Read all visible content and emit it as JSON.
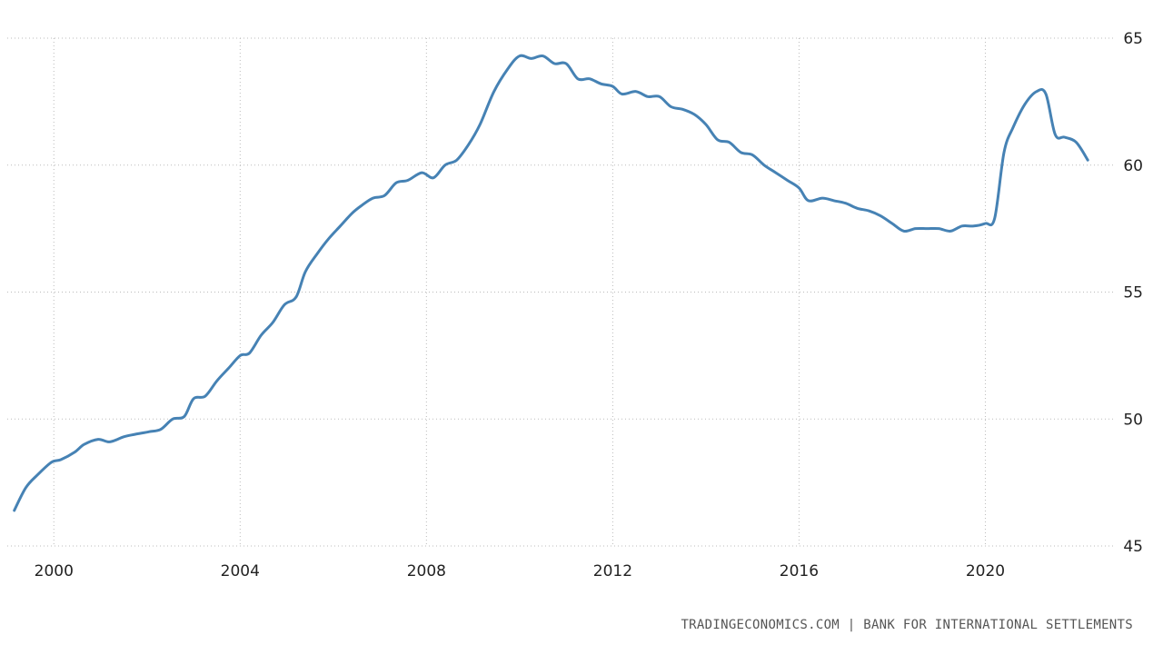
{
  "chart_data": {
    "type": "line",
    "xlim": [
      1999.0,
      2022.8
    ],
    "ylim": [
      45,
      65
    ],
    "x_ticks": [
      2000,
      2004,
      2008,
      2012,
      2016,
      2020
    ],
    "x_tick_labels": [
      "2000",
      "2004",
      "2008",
      "2012",
      "2016",
      "2020"
    ],
    "y_ticks": [
      45,
      50,
      55,
      60,
      65
    ],
    "y_tick_labels": [
      "45",
      "50",
      "55",
      "60",
      "65"
    ],
    "grid": true,
    "line_color": "#4682b4",
    "grid_color": "#bbbbbb",
    "series": [
      {
        "x": [
          1999.15,
          1999.4,
          1999.65,
          1999.95,
          2000.15,
          2000.45,
          2000.65,
          2000.95,
          2001.2,
          2001.5,
          2001.75,
          2002.05,
          2002.3,
          2002.55,
          2002.8,
          2003.0,
          2003.25,
          2003.5,
          2003.75,
          2004.0,
          2004.2,
          2004.45,
          2004.7,
          2004.95,
          2005.2,
          2005.4,
          2005.65,
          2005.9,
          2006.15,
          2006.4,
          2006.6,
          2006.85,
          2007.1,
          2007.35,
          2007.6,
          2007.9,
          2008.15,
          2008.4,
          2008.65,
          2008.9,
          2009.15,
          2009.45,
          2009.75,
          2010.0,
          2010.25,
          2010.5,
          2010.75,
          2011.0,
          2011.25,
          2011.5,
          2011.75,
          2012.0,
          2012.2,
          2012.5,
          2012.75,
          2013.0,
          2013.25,
          2013.5,
          2013.75,
          2014.0,
          2014.25,
          2014.5,
          2014.75,
          2015.0,
          2015.25,
          2015.5,
          2015.75,
          2016.0,
          2016.2,
          2016.5,
          2016.75,
          2017.0,
          2017.25,
          2017.5,
          2017.75,
          2018.0,
          2018.25,
          2018.5,
          2018.75,
          2019.0,
          2019.25,
          2019.5,
          2019.75,
          2020.0,
          2020.2,
          2020.4,
          2020.6,
          2020.85,
          2021.1,
          2021.3,
          2021.5,
          2021.7,
          2021.95,
          2022.2
        ],
        "values": [
          46.4,
          47.3,
          47.8,
          48.3,
          48.4,
          48.7,
          49.0,
          49.2,
          49.1,
          49.3,
          49.4,
          49.5,
          49.6,
          50.0,
          50.1,
          50.8,
          50.9,
          51.5,
          52.0,
          52.5,
          52.6,
          53.3,
          53.8,
          54.5,
          54.8,
          55.8,
          56.5,
          57.1,
          57.6,
          58.1,
          58.4,
          58.7,
          58.8,
          59.3,
          59.4,
          59.7,
          59.5,
          60.0,
          60.2,
          60.8,
          61.6,
          62.9,
          63.8,
          64.3,
          64.2,
          64.3,
          64.0,
          64.0,
          63.4,
          63.4,
          63.2,
          63.1,
          62.8,
          62.9,
          62.7,
          62.7,
          62.3,
          62.2,
          62.0,
          61.6,
          61.0,
          60.9,
          60.5,
          60.4,
          60.0,
          59.7,
          59.4,
          59.1,
          58.6,
          58.7,
          58.6,
          58.5,
          58.3,
          58.2,
          58.0,
          57.7,
          57.4,
          57.5,
          57.5,
          57.5,
          57.4,
          57.6,
          57.6,
          57.7,
          57.9,
          60.5,
          61.5,
          62.4,
          62.9,
          62.8,
          61.2,
          61.1,
          60.9,
          60.2
        ]
      }
    ]
  },
  "source_text": "TRADINGECONOMICS.COM  |  BANK FOR INTERNATIONAL SETTLEMENTS"
}
